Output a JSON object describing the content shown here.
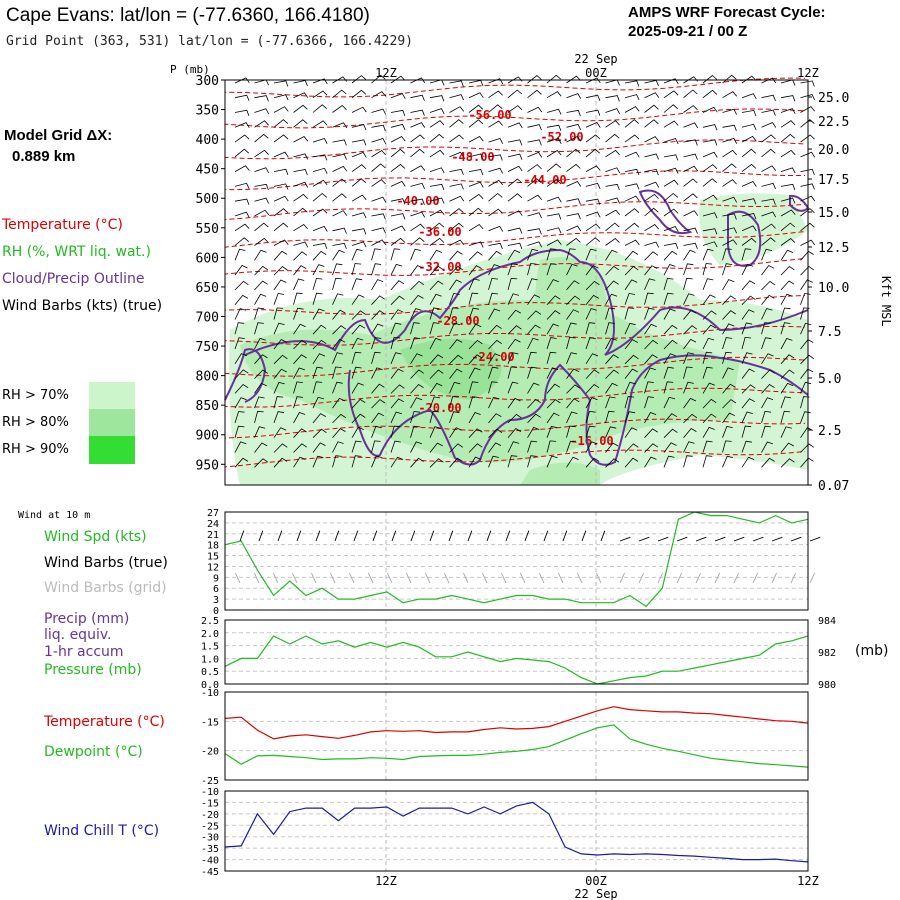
{
  "header": {
    "title": "Cape Evans:  lat/lon = (-77.6360, 166.4180)",
    "grid_point": "Grid Point (363, 531) lat/lon = (-77.6366, 166.4229)",
    "cycle_label": "AMPS WRF Forecast Cycle:",
    "cycle_value": "2025-09-21 / 00  Z",
    "model_grid_label": "Model Grid ΔX:",
    "model_grid_value": "0.889 km"
  },
  "legend": {
    "temperature": "Temperature (°C)",
    "rh": "RH (%, WRT liq. wat.)",
    "cloud": "Cloud/Precip Outline",
    "wind": "Wind Barbs (kts) (true)",
    "rh_bins": [
      {
        "label": "RH > 70%",
        "color": "#ccf5cc"
      },
      {
        "label": "RH > 80%",
        "color": "#9ee69e"
      },
      {
        "label": "RH > 90%",
        "color": "#33dd33"
      }
    ]
  },
  "colors": {
    "temperature": "#dd0000",
    "rh": "#22bb22",
    "cloud": "#663399",
    "wind": "#000000",
    "wind_grid": "#aaaaaa",
    "precip_label": "#663399",
    "windchill": "#1a1aaa"
  },
  "time_axis": {
    "ticks": [
      "12Z",
      "00Z",
      "12Z"
    ],
    "date_label": "22 Sep"
  },
  "chart_data": [
    {
      "type": "heatmap",
      "subtype": "time-height cross section",
      "ylabel": "P (mb)",
      "y_ticks": [
        300,
        350,
        400,
        450,
        500,
        550,
        600,
        650,
        700,
        750,
        800,
        850,
        900,
        950
      ],
      "y_range": [
        300,
        985
      ],
      "right_axis_label": "Kft MSL",
      "right_ticks": [
        "25.0",
        "22.5",
        "20.0",
        "17.5",
        "15.0",
        "12.5",
        "10.0",
        "7.5",
        "5.0",
        "2.5",
        "0.07"
      ],
      "temperature_labels": [
        "-56.00",
        "-52.00",
        "-48.00",
        "-44.00",
        "-40.00",
        "-36.00",
        "-32.00",
        "-28.00",
        "-24.00",
        "-20.00",
        "-16.00"
      ],
      "grid": true
    },
    {
      "type": "line",
      "panel_title": "Wind at 10 m",
      "labels": [
        "Wind Spd (kts)",
        "Wind Barbs (true)",
        "Wind Barbs (grid)"
      ],
      "y_ticks": [
        0,
        3,
        6,
        9,
        12,
        15,
        18,
        21,
        24,
        27
      ],
      "ylim": [
        0,
        27
      ],
      "x": [
        0,
        1,
        2,
        3,
        4,
        5,
        6,
        7,
        8,
        9,
        10,
        11,
        12,
        13,
        14,
        15,
        16,
        17,
        18,
        19,
        20,
        21,
        22,
        23,
        24,
        25,
        26,
        27,
        28,
        29,
        30,
        31,
        32,
        33,
        34,
        35,
        36
      ],
      "series": [
        {
          "name": "Wind Spd (kts)",
          "values": [
            18,
            19,
            11,
            4,
            8,
            4,
            6,
            3,
            3,
            4,
            5,
            2,
            3,
            3,
            4,
            3,
            2,
            3,
            4,
            4,
            3,
            3,
            2,
            2,
            2,
            4,
            1,
            6,
            25,
            27,
            26,
            26,
            25,
            24,
            26,
            24,
            25
          ]
        }
      ]
    },
    {
      "type": "line",
      "labels": [
        "Precip (mm)",
        "liq. equiv.",
        "1-hr accum",
        "Pressure (mb)"
      ],
      "y_ticks": [
        "0.0",
        "0.5",
        "1.0",
        "1.5",
        "2.0",
        "2.5"
      ],
      "ylim": [
        0,
        2.5
      ],
      "right_label": "(mb)",
      "right_ticks": [
        "980",
        "982",
        "984"
      ],
      "right_ylim": [
        980,
        984
      ],
      "x": [
        0,
        1,
        2,
        3,
        4,
        5,
        6,
        7,
        8,
        9,
        10,
        11,
        12,
        13,
        14,
        15,
        16,
        17,
        18,
        19,
        20,
        21,
        22,
        23,
        24,
        25,
        26,
        27,
        28,
        29,
        30,
        31,
        32,
        33,
        34,
        35,
        36
      ],
      "series": [
        {
          "name": "Pressure (mb)",
          "values": [
            981.1,
            981.6,
            981.6,
            983.0,
            982.5,
            983.0,
            982.5,
            982.7,
            982.3,
            982.6,
            982.3,
            982.6,
            982.3,
            981.7,
            981.7,
            982.0,
            981.7,
            981.4,
            981.6,
            981.5,
            981.4,
            981.0,
            980.4,
            980.0,
            980.2,
            980.4,
            980.5,
            980.8,
            980.8,
            981.0,
            981.2,
            981.4,
            981.6,
            981.8,
            982.5,
            982.7,
            983.0
          ]
        }
      ]
    },
    {
      "type": "line",
      "labels": [
        "Temperature (°C)",
        "Dewpoint (°C)"
      ],
      "y_ticks": [
        -25,
        -20,
        -15,
        -10
      ],
      "ylim": [
        -25,
        -10
      ],
      "x": [
        0,
        1,
        2,
        3,
        4,
        5,
        6,
        7,
        8,
        9,
        10,
        11,
        12,
        13,
        14,
        15,
        16,
        17,
        18,
        19,
        20,
        21,
        22,
        23,
        24,
        25,
        26,
        27,
        28,
        29,
        30,
        31,
        32,
        33,
        34,
        35,
        36
      ],
      "series": [
        {
          "name": "Temperature (°C)",
          "values": [
            -14.5,
            -14.3,
            -16.5,
            -18.0,
            -17.5,
            -17.3,
            -17.6,
            -17.9,
            -17.4,
            -16.8,
            -16.6,
            -16.7,
            -16.6,
            -16.9,
            -16.8,
            -16.8,
            -16.4,
            -16.1,
            -16.3,
            -16.2,
            -15.9,
            -15.0,
            -14.1,
            -13.2,
            -12.5,
            -13.0,
            -13.2,
            -13.4,
            -13.4,
            -13.6,
            -13.7,
            -14.0,
            -14.3,
            -14.6,
            -14.9,
            -15.0,
            -15.3
          ]
        },
        {
          "name": "Dewpoint (°C)",
          "values": [
            -20.5,
            -22.3,
            -20.9,
            -20.8,
            -21.0,
            -21.2,
            -21.5,
            -21.4,
            -21.4,
            -21.2,
            -21.3,
            -21.5,
            -21.0,
            -20.9,
            -20.8,
            -20.8,
            -20.6,
            -20.3,
            -20.1,
            -19.8,
            -19.3,
            -18.2,
            -17.1,
            -16.1,
            -15.6,
            -18.0,
            -18.9,
            -19.6,
            -20.1,
            -20.7,
            -21.3,
            -21.6,
            -21.9,
            -22.2,
            -22.4,
            -22.6,
            -22.8
          ]
        }
      ]
    },
    {
      "type": "line",
      "labels": [
        "Wind Chill T (°C)"
      ],
      "y_ticks": [
        -45,
        -40,
        -35,
        -30,
        -25,
        -20,
        -15,
        -10
      ],
      "ylim": [
        -45,
        -10
      ],
      "x": [
        0,
        1,
        2,
        3,
        4,
        5,
        6,
        7,
        8,
        9,
        10,
        11,
        12,
        13,
        14,
        15,
        16,
        17,
        18,
        19,
        20,
        21,
        22,
        23,
        24,
        25,
        26,
        27,
        28,
        29,
        30,
        31,
        32,
        33,
        34,
        35,
        36
      ],
      "series": [
        {
          "name": "Wind Chill T (°C)",
          "values": [
            -34.5,
            -34.0,
            -20.0,
            -29.0,
            -19.0,
            -17.5,
            -17.5,
            -23.0,
            -17.5,
            -17.5,
            -17.0,
            -21.0,
            -17.5,
            -17.5,
            -17.5,
            -20.0,
            -17.0,
            -20.0,
            -16.5,
            -15.0,
            -20.0,
            -34.5,
            -37.5,
            -38.0,
            -37.5,
            -37.8,
            -37.5,
            -37.8,
            -38.2,
            -38.5,
            -39.0,
            -39.5,
            -40.0,
            -40.0,
            -39.8,
            -40.5,
            -41.0
          ]
        }
      ]
    }
  ],
  "lower_panels": {
    "wind_title": "Wind at 10 m",
    "wind_spd": "Wind Spd (kts)",
    "wind_barbs_true": "Wind Barbs (true)",
    "wind_barbs_grid": "Wind Barbs (grid)",
    "precip": "Precip (mm)",
    "liq_equiv": "liq. equiv.",
    "accum": "1-hr accum",
    "pressure": "Pressure (mb)",
    "pressure_unit": "(mb)",
    "temperature": "Temperature (°C)",
    "dewpoint": "Dewpoint (°C)",
    "windchill": "Wind Chill T (°C)"
  }
}
